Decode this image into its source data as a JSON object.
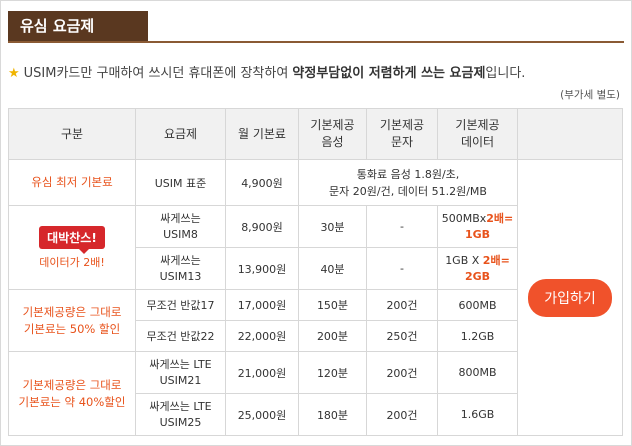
{
  "header": {
    "title": "유심 요금제"
  },
  "description": {
    "prefix": "USIM카드만 구매하여 쓰시던 휴대폰에 장착하여 ",
    "bold": "약정부담없이 저렴하게 쓰는 요금제",
    "suffix": "입니다.",
    "vat_note": "(부가세 별도)"
  },
  "table": {
    "headers": {
      "category": "구분",
      "plan": "요금제",
      "monthly_fee": "월 기본료",
      "voice_1": "기본제공",
      "voice_2": "음성",
      "sms_1": "기본제공",
      "sms_2": "문자",
      "data_1": "기본제공",
      "data_2": "데이터"
    },
    "row1": {
      "category": "유심 최저 기본료",
      "plan": "USIM 표준",
      "fee": "4,900원",
      "usage_line1": "통화료 음성 1.8원/초,",
      "usage_line2": "문자 20원/건, 데이터 51.2원/MB"
    },
    "group2": {
      "badge": "대박찬스!",
      "subtitle": "데이터가 2배!",
      "row_a": {
        "plan_1": "싸게쓰는",
        "plan_2": "USIM8",
        "fee": "8,900원",
        "voice": "30분",
        "sms": "-",
        "data_prefix": "500MBx",
        "data_highlight_1": "2배=",
        "data_highlight_2": "1GB"
      },
      "row_b": {
        "plan_1": "싸게쓰는",
        "plan_2": "USIM13",
        "fee": "13,900원",
        "voice": "40분",
        "sms": "-",
        "data_prefix": "1GB X ",
        "data_highlight_1": "2배=",
        "data_highlight_2": "2GB"
      }
    },
    "group3": {
      "category_1": "기본제공량은 그대로",
      "category_2": "기본료는 50% 할인",
      "row_a": {
        "plan": "무조건 반값17",
        "fee": "17,000원",
        "voice": "150분",
        "sms": "200건",
        "data": "600MB"
      },
      "row_b": {
        "plan": "무조건 반값22",
        "fee": "22,000원",
        "voice": "200분",
        "sms": "250건",
        "data": "1.2GB"
      }
    },
    "group4": {
      "category_1": "기본제공량은 그대로",
      "category_2": "기본료는 약 40%할인",
      "row_a": {
        "plan_1": "싸게쓰는 LTE",
        "plan_2": "USIM21",
        "fee": "21,000원",
        "voice": "120분",
        "sms": "200건",
        "data": "800MB"
      },
      "row_b": {
        "plan_1": "싸게쓰는 LTE",
        "plan_2": "USIM25",
        "fee": "25,000원",
        "voice": "180분",
        "sms": "200건",
        "data": "1.6GB"
      }
    },
    "join_button": "가입하기"
  },
  "colors": {
    "title_bg": "#5a3820",
    "accent": "#e8531c",
    "badge": "#d6272b",
    "button": "#f0522b",
    "star": "#f0b400"
  },
  "icons": {
    "star": "star-icon"
  }
}
